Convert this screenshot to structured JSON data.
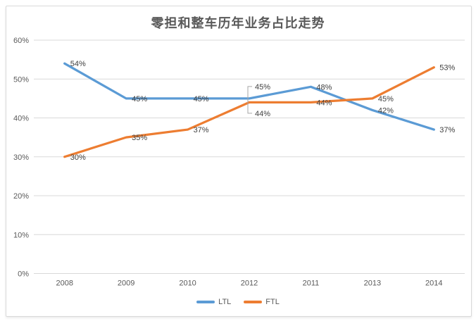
{
  "chart_data": {
    "type": "line",
    "title": "零担和整车历年业务占比走势",
    "categories": [
      "2008",
      "2009",
      "2010",
      "2012",
      "2011",
      "2013",
      "2014"
    ],
    "series": [
      {
        "name": "LTL",
        "color": "#5B9BD5",
        "values": [
          54,
          45,
          45,
          45,
          48,
          42,
          37
        ]
      },
      {
        "name": "FTL",
        "color": "#ED7D31",
        "values": [
          30,
          35,
          37,
          44,
          44,
          45,
          53
        ]
      }
    ],
    "ylim": [
      0,
      60
    ],
    "ytick_step": 10,
    "ytick_labels": [
      "0%",
      "10%",
      "20%",
      "30%",
      "40%",
      "50%",
      "60%"
    ],
    "xlabel": "",
    "ylabel": "",
    "grid": "horizontal",
    "legend_position": "bottom",
    "data_labels": [
      "54%",
      "45%",
      "45%",
      "45%",
      "48%",
      "42%",
      "37%",
      "30%",
      "35%",
      "37%",
      "44%",
      "44%",
      "45%",
      "53%"
    ],
    "label_suffix": "%",
    "callout_category_index": 3,
    "colors": {
      "background": "#FFFFFF",
      "frame_border": "#D9D9D9",
      "gridline": "#D9D9D9",
      "axis_text": "#595959",
      "data_label_text": "#404040",
      "title_text": "#595959",
      "leader_line": "#A6A6A6"
    }
  }
}
